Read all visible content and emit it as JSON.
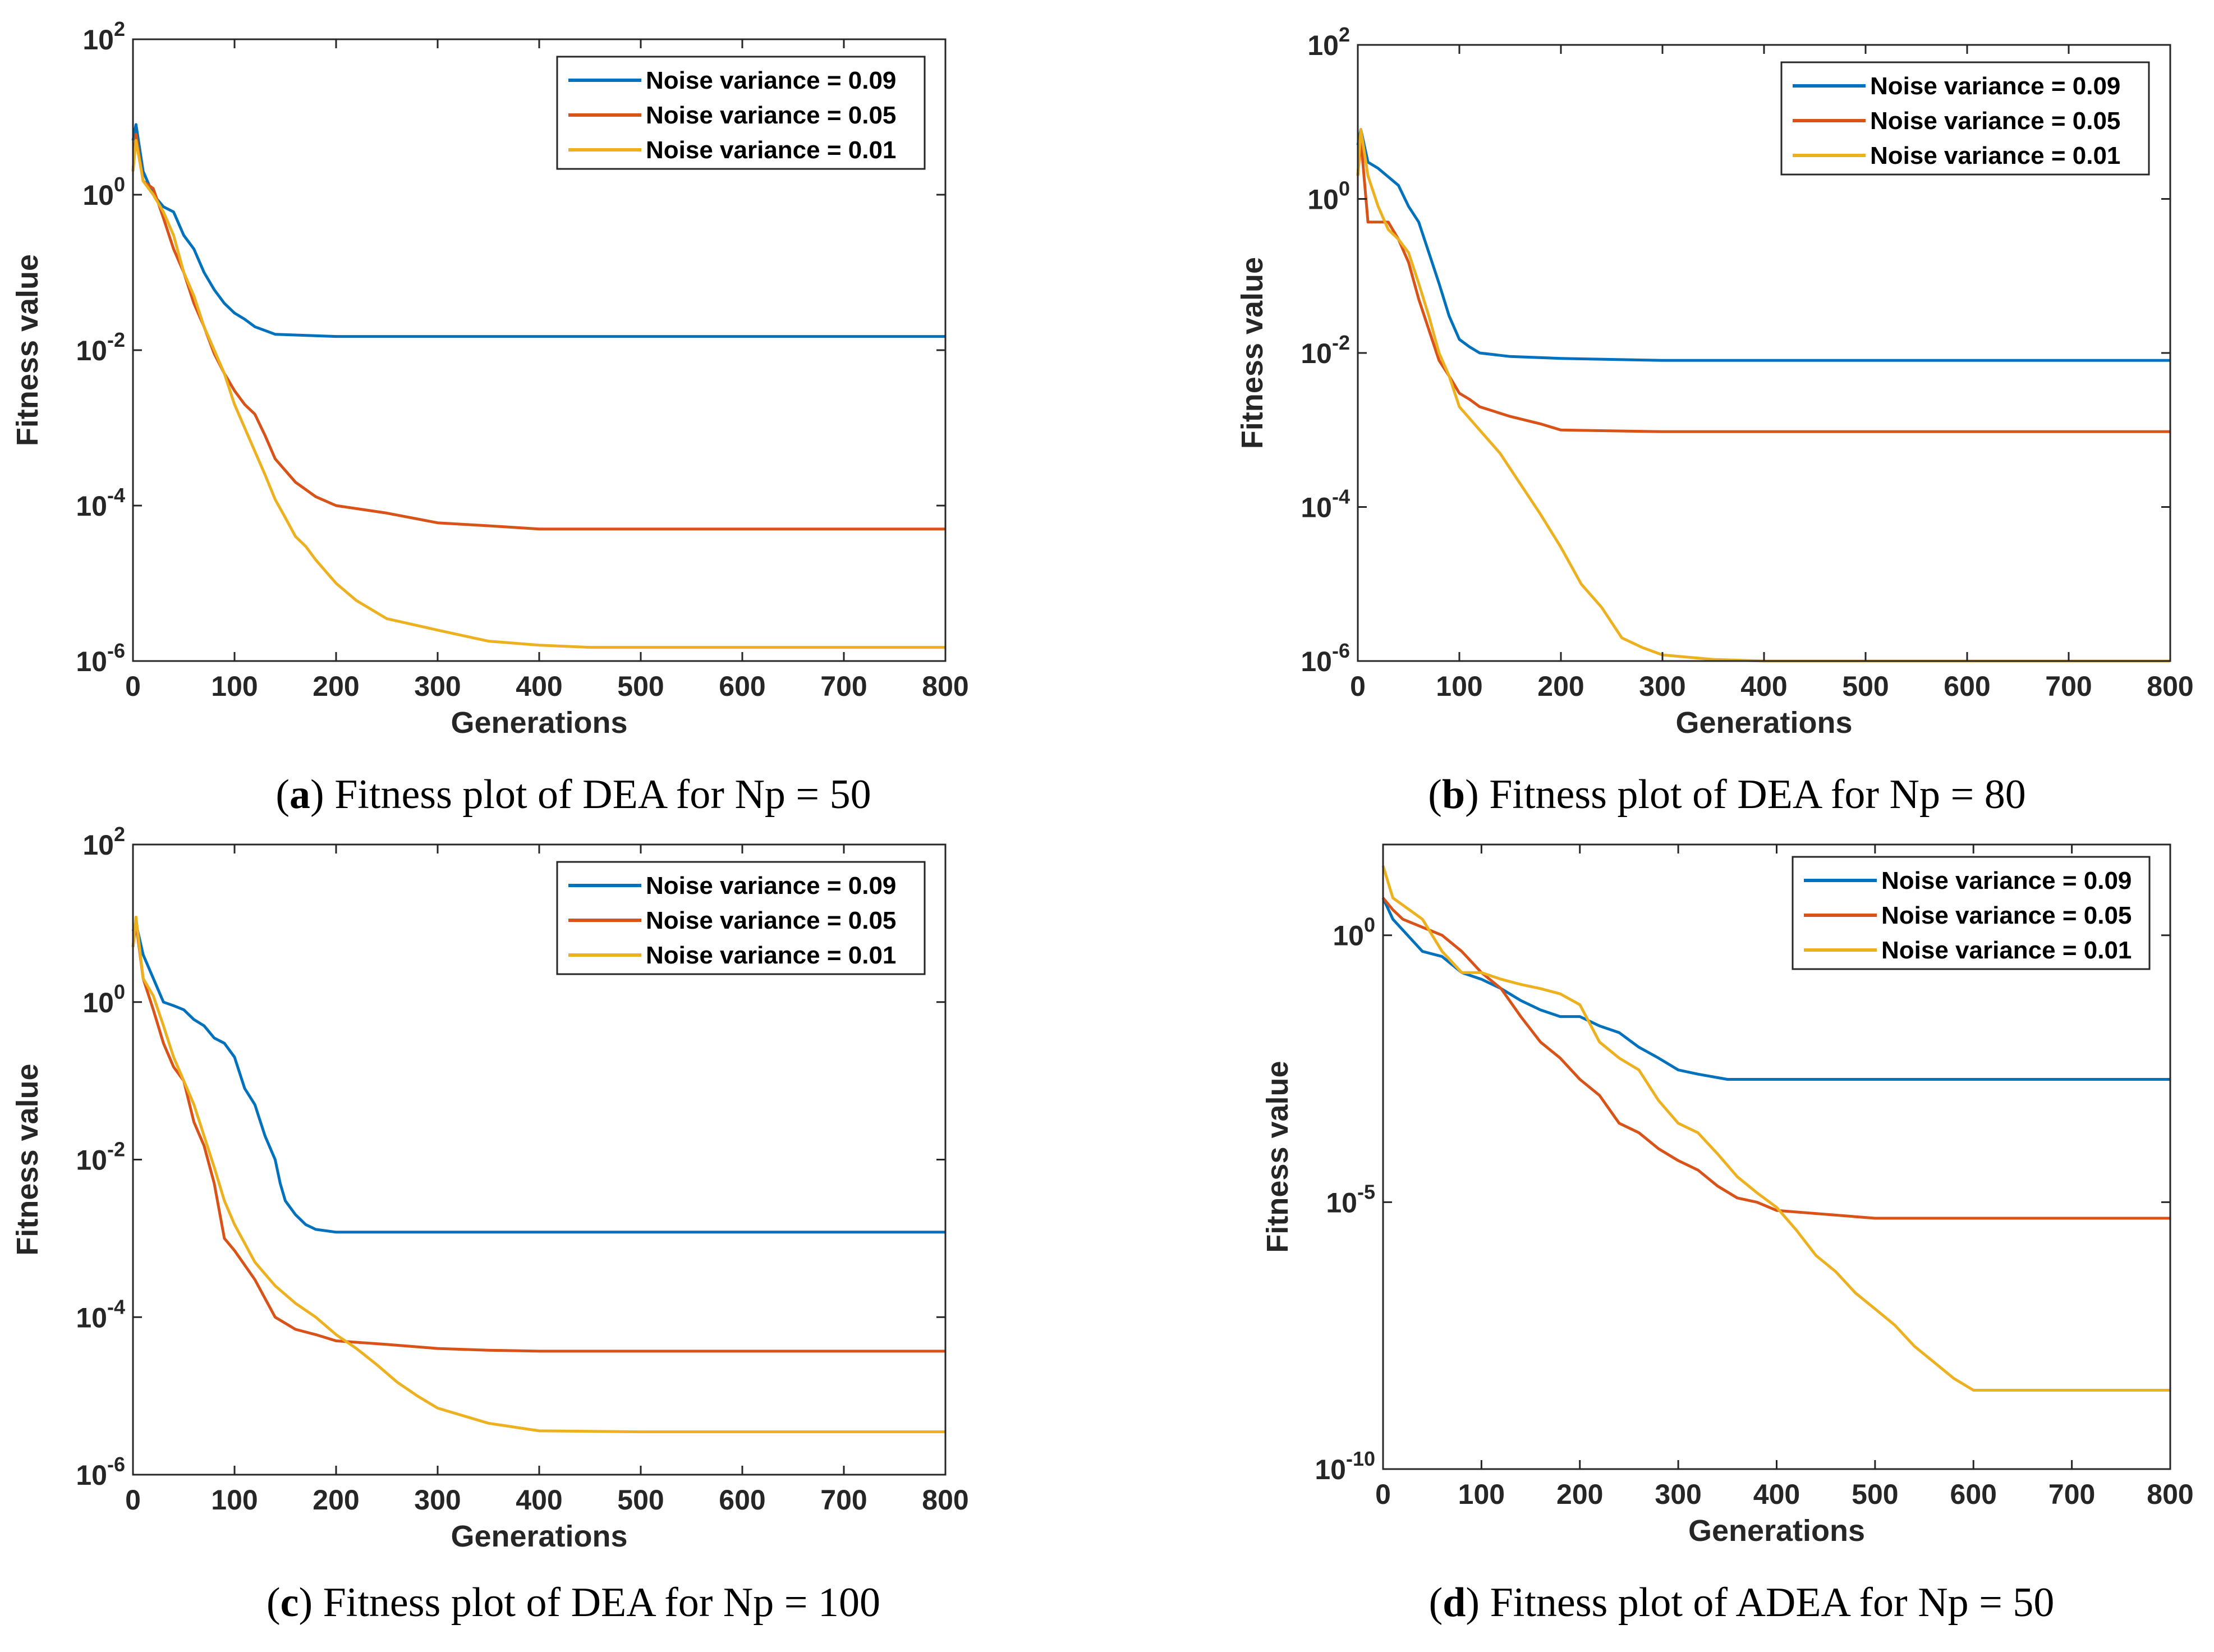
{
  "figure": {
    "background": "#ffffff"
  },
  "chart_data": [
    {
      "id": "a",
      "type": "line",
      "title": "",
      "xlabel": "Generations",
      "ylabel": "Fitness value",
      "xlim": [
        0,
        800
      ],
      "xticks": [
        0,
        100,
        200,
        300,
        400,
        500,
        600,
        700,
        800
      ],
      "yscale": "log",
      "ylim_exp": [
        -6,
        2
      ],
      "yticks": [
        {
          "exp": 2,
          "label": "10",
          "sup": "2"
        },
        {
          "exp": 0,
          "label": "10",
          "sup": "0"
        },
        {
          "exp": -2,
          "label": "10",
          "sup": "-2"
        },
        {
          "exp": -4,
          "label": "10",
          "sup": "-4"
        },
        {
          "exp": -6,
          "label": "10",
          "sup": "-6"
        }
      ],
      "legend_position": "top-right",
      "caption": {
        "letter": "a",
        "text": " Fitness plot of DEA for Np = 50"
      },
      "series": [
        {
          "name": "Noise variance = 0.09",
          "color": "#0072BD",
          "x": [
            0,
            3,
            10,
            20,
            30,
            40,
            50,
            60,
            70,
            80,
            90,
            100,
            110,
            120,
            140,
            200,
            300,
            800
          ],
          "y": [
            5,
            8,
            2,
            1,
            0.7,
            0.6,
            0.3,
            0.2,
            0.1,
            0.06,
            0.04,
            0.03,
            0.025,
            0.02,
            0.016,
            0.015,
            0.015,
            0.015
          ]
        },
        {
          "name": "Noise variance = 0.05",
          "color": "#D95319",
          "x": [
            0,
            3,
            10,
            20,
            30,
            40,
            50,
            60,
            70,
            80,
            90,
            100,
            110,
            120,
            130,
            140,
            160,
            180,
            200,
            250,
            300,
            350,
            400,
            500,
            800
          ],
          "y": [
            2,
            6,
            1.5,
            1.2,
            0.5,
            0.2,
            0.1,
            0.04,
            0.02,
            0.009,
            0.005,
            0.003,
            0.002,
            0.0015,
            0.0008,
            0.0004,
            0.0002,
            0.00013,
            0.0001,
            8e-05,
            6e-05,
            5.5e-05,
            5e-05,
            5e-05,
            5e-05
          ]
        },
        {
          "name": "Noise variance = 0.01",
          "color": "#EDB120",
          "x": [
            0,
            3,
            10,
            20,
            30,
            40,
            50,
            60,
            70,
            80,
            90,
            100,
            110,
            120,
            130,
            140,
            150,
            160,
            170,
            180,
            200,
            220,
            250,
            300,
            350,
            400,
            450,
            500,
            800
          ],
          "y": [
            2,
            5,
            1.5,
            1,
            0.6,
            0.3,
            0.1,
            0.05,
            0.02,
            0.01,
            0.005,
            0.002,
            0.001,
            0.0005,
            0.00025,
            0.00012,
            7e-05,
            4e-05,
            3e-05,
            2e-05,
            1e-05,
            6e-06,
            3.5e-06,
            2.5e-06,
            1.8e-06,
            1.6e-06,
            1.5e-06,
            1.5e-06,
            1.5e-06
          ]
        }
      ]
    },
    {
      "id": "b",
      "type": "line",
      "title": "",
      "xlabel": "Generations",
      "ylabel": "Fitness value",
      "xlim": [
        0,
        800
      ],
      "xticks": [
        0,
        100,
        200,
        300,
        400,
        500,
        600,
        700,
        800
      ],
      "yscale": "log",
      "ylim_exp": [
        -6,
        2
      ],
      "yticks": [
        {
          "exp": 2,
          "label": "10",
          "sup": "2"
        },
        {
          "exp": 0,
          "label": "10",
          "sup": "0"
        },
        {
          "exp": -2,
          "label": "10",
          "sup": "-2"
        },
        {
          "exp": -4,
          "label": "10",
          "sup": "-4"
        },
        {
          "exp": -6,
          "label": "10",
          "sup": "-6"
        }
      ],
      "legend_position": "top-right",
      "caption": {
        "letter": "b",
        "text": " Fitness plot of DEA for Np = 80"
      },
      "series": [
        {
          "name": "Noise variance = 0.09",
          "color": "#0072BD",
          "x": [
            0,
            3,
            10,
            20,
            40,
            50,
            60,
            70,
            80,
            90,
            100,
            110,
            120,
            150,
            200,
            300,
            800
          ],
          "y": [
            5,
            8,
            3,
            2.5,
            1.5,
            0.8,
            0.5,
            0.2,
            0.08,
            0.03,
            0.015,
            0.012,
            0.01,
            0.009,
            0.0085,
            0.008,
            0.008
          ]
        },
        {
          "name": "Noise variance = 0.05",
          "color": "#D95319",
          "x": [
            0,
            3,
            10,
            30,
            40,
            50,
            60,
            70,
            80,
            90,
            100,
            110,
            120,
            150,
            180,
            200,
            300,
            800
          ],
          "y": [
            2,
            6,
            0.5,
            0.5,
            0.3,
            0.15,
            0.05,
            0.02,
            0.008,
            0.005,
            0.003,
            0.0025,
            0.002,
            0.0015,
            0.0012,
            0.001,
            0.00095,
            0.00095
          ]
        },
        {
          "name": "Noise variance = 0.01",
          "color": "#EDB120",
          "x": [
            0,
            3,
            10,
            20,
            30,
            40,
            50,
            60,
            70,
            80,
            90,
            100,
            120,
            140,
            160,
            180,
            200,
            220,
            240,
            260,
            280,
            300,
            350,
            400,
            500,
            800
          ],
          "y": [
            2,
            8,
            2,
            0.8,
            0.4,
            0.3,
            0.2,
            0.08,
            0.03,
            0.01,
            0.005,
            0.002,
            0.001,
            0.0005,
            0.0002,
            8e-05,
            3e-05,
            1e-05,
            5e-06,
            2e-06,
            1.5e-06,
            1.2e-06,
            1.05e-06,
            1e-06,
            1e-06,
            1e-06
          ]
        }
      ]
    },
    {
      "id": "c",
      "type": "line",
      "title": "",
      "xlabel": "Generations",
      "ylabel": "Fitness value",
      "xlim": [
        0,
        800
      ],
      "xticks": [
        0,
        100,
        200,
        300,
        400,
        500,
        600,
        700,
        800
      ],
      "yscale": "log",
      "ylim_exp": [
        -6,
        2
      ],
      "yticks": [
        {
          "exp": 2,
          "label": "10",
          "sup": "2"
        },
        {
          "exp": 0,
          "label": "10",
          "sup": "0"
        },
        {
          "exp": -2,
          "label": "10",
          "sup": "-2"
        },
        {
          "exp": -4,
          "label": "10",
          "sup": "-4"
        },
        {
          "exp": -6,
          "label": "10",
          "sup": "-6"
        }
      ],
      "legend_position": "top-right",
      "caption": {
        "letter": "c",
        "text": " Fitness plot of DEA for Np = 100"
      },
      "series": [
        {
          "name": "Noise variance = 0.09",
          "color": "#0072BD",
          "x": [
            0,
            3,
            10,
            20,
            30,
            40,
            50,
            60,
            70,
            80,
            90,
            100,
            110,
            120,
            130,
            140,
            145,
            150,
            160,
            170,
            180,
            200,
            300,
            800
          ],
          "y": [
            8,
            10,
            4,
            2,
            1,
            0.9,
            0.8,
            0.6,
            0.5,
            0.35,
            0.3,
            0.2,
            0.08,
            0.05,
            0.02,
            0.01,
            0.005,
            0.003,
            0.002,
            0.0015,
            0.0013,
            0.0012,
            0.0012,
            0.0012
          ]
        },
        {
          "name": "Noise variance = 0.05",
          "color": "#D95319",
          "x": [
            0,
            3,
            10,
            20,
            30,
            40,
            50,
            60,
            70,
            80,
            90,
            100,
            120,
            140,
            160,
            180,
            200,
            250,
            300,
            350,
            400,
            500,
            800
          ],
          "y": [
            5,
            10,
            2,
            0.8,
            0.3,
            0.15,
            0.1,
            0.03,
            0.015,
            0.005,
            0.001,
            0.0007,
            0.0003,
            0.0001,
            7e-05,
            6e-05,
            5e-05,
            4.5e-05,
            4e-05,
            3.8e-05,
            3.7e-05,
            3.7e-05,
            3.7e-05
          ]
        },
        {
          "name": "Noise variance = 0.01",
          "color": "#EDB120",
          "x": [
            0,
            3,
            10,
            20,
            30,
            40,
            50,
            60,
            70,
            80,
            90,
            100,
            120,
            140,
            160,
            180,
            200,
            220,
            240,
            260,
            280,
            300,
            350,
            400,
            500,
            800
          ],
          "y": [
            5,
            12,
            2,
            1.2,
            0.5,
            0.2,
            0.1,
            0.05,
            0.02,
            0.008,
            0.003,
            0.0015,
            0.0005,
            0.00025,
            0.00015,
            0.0001,
            6e-05,
            4e-05,
            2.5e-05,
            1.5e-05,
            1e-05,
            7e-06,
            4.5e-06,
            3.6e-06,
            3.5e-06,
            3.5e-06
          ]
        }
      ]
    },
    {
      "id": "d",
      "type": "line",
      "title": "",
      "xlabel": "Generations",
      "ylabel": "Fitness value",
      "xlim": [
        0,
        800
      ],
      "xticks": [
        0,
        100,
        200,
        300,
        400,
        500,
        600,
        700,
        800
      ],
      "yscale": "log",
      "ylim_exp": [
        -10,
        1.7
      ],
      "yticks": [
        {
          "exp": 0,
          "label": "10",
          "sup": "0"
        },
        {
          "exp": -5,
          "label": "10",
          "sup": "-5"
        },
        {
          "exp": -10,
          "label": "10",
          "sup": "-10"
        }
      ],
      "legend_position": "top-right",
      "caption": {
        "letter": "d",
        "text": " Fitness plot of ADEA for Np = 50"
      },
      "series": [
        {
          "name": "Noise variance = 0.09",
          "color": "#0072BD",
          "x": [
            0,
            10,
            40,
            60,
            80,
            100,
            120,
            140,
            160,
            180,
            200,
            220,
            240,
            260,
            280,
            300,
            320,
            350,
            400,
            500,
            800
          ],
          "y": [
            5,
            2,
            0.5,
            0.4,
            0.2,
            0.15,
            0.1,
            0.06,
            0.04,
            0.03,
            0.03,
            0.02,
            0.015,
            0.008,
            0.005,
            0.003,
            0.0025,
            0.002,
            0.002,
            0.002,
            0.002
          ]
        },
        {
          "name": "Noise variance = 0.05",
          "color": "#D95319",
          "x": [
            0,
            10,
            20,
            60,
            80,
            100,
            120,
            140,
            160,
            180,
            200,
            220,
            240,
            260,
            280,
            300,
            320,
            340,
            360,
            380,
            400,
            500,
            800
          ],
          "y": [
            5,
            3,
            2,
            1,
            0.5,
            0.2,
            0.1,
            0.03,
            0.01,
            0.005,
            0.002,
            0.001,
            0.0003,
            0.0002,
            0.0001,
            6e-05,
            4e-05,
            2e-05,
            1.2e-05,
            1e-05,
            7e-06,
            5e-06,
            5e-06
          ]
        },
        {
          "name": "Noise variance = 0.01",
          "color": "#EDB120",
          "x": [
            0,
            10,
            40,
            60,
            80,
            100,
            120,
            140,
            160,
            180,
            200,
            220,
            240,
            260,
            280,
            300,
            320,
            340,
            360,
            380,
            400,
            420,
            440,
            460,
            480,
            500,
            520,
            540,
            560,
            580,
            600,
            650,
            700,
            800
          ],
          "y": [
            20,
            5,
            2,
            0.5,
            0.2,
            0.2,
            0.15,
            0.12,
            0.1,
            0.08,
            0.05,
            0.01,
            0.005,
            0.003,
            0.0008,
            0.0003,
            0.0002,
            8e-05,
            3e-05,
            1.5e-05,
            8e-06,
            3e-06,
            1e-06,
            5e-07,
            2e-07,
            1e-07,
            5e-08,
            2e-08,
            1e-08,
            5e-09,
            3e-09,
            3e-09,
            3e-09,
            3e-09
          ]
        }
      ]
    }
  ]
}
